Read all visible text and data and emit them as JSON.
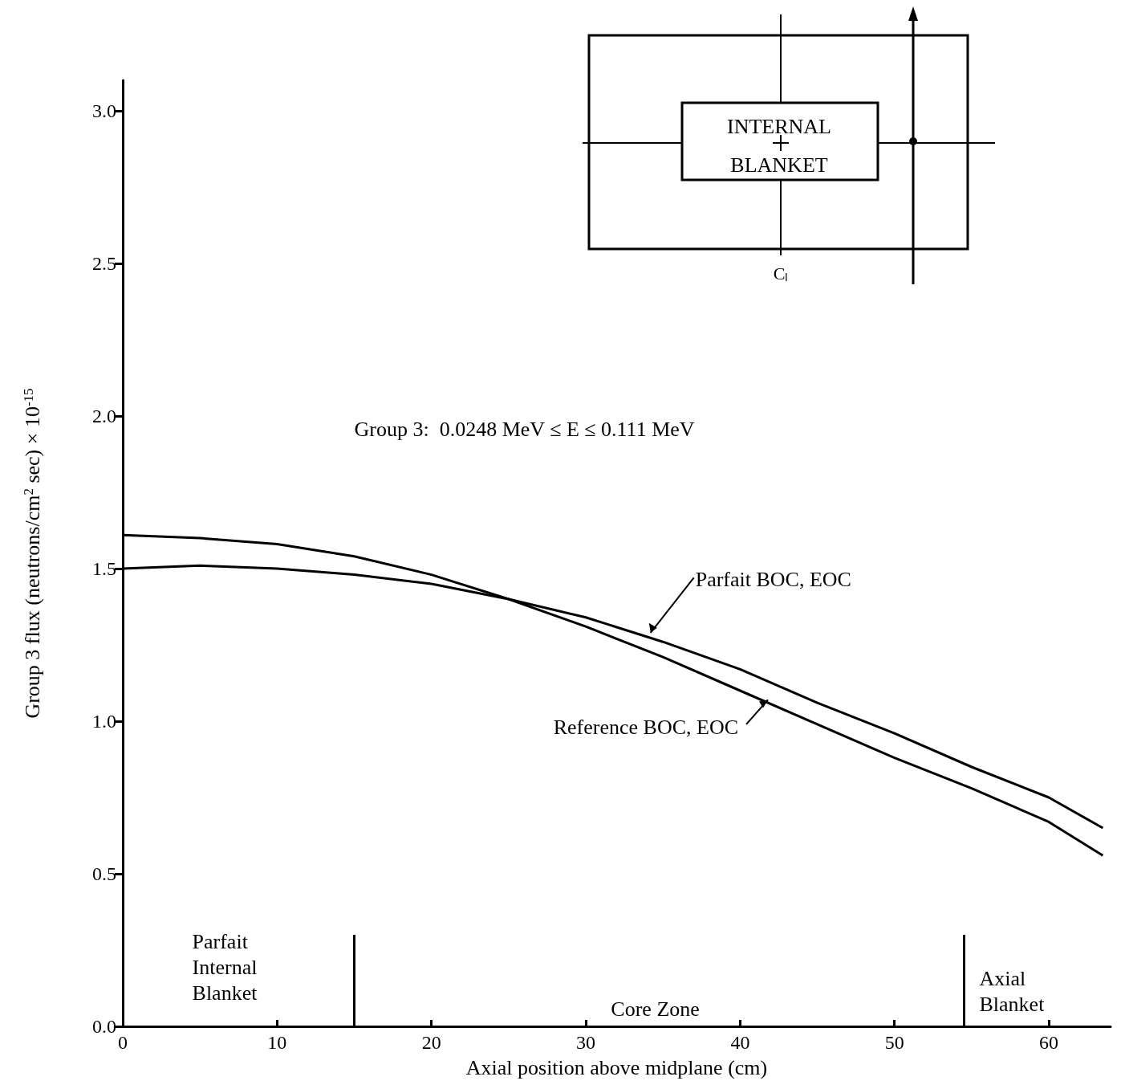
{
  "chart_data": {
    "type": "line",
    "xlabel": "Axial position above midplane (cm)",
    "ylabel": "Group 3 flux (neutrons/cm$^{2}$ sec) × 10$^{-15}$",
    "x": [
      0,
      5,
      10,
      15,
      20,
      25,
      30,
      35,
      40,
      45,
      50,
      55,
      60,
      63.5
    ],
    "series": [
      {
        "name": "Parfait BOC, EOC",
        "color": "#000000",
        "values": [
          1.5,
          1.51,
          1.5,
          1.48,
          1.45,
          1.4,
          1.34,
          1.26,
          1.17,
          1.06,
          0.96,
          0.85,
          0.75,
          0.65
        ]
      },
      {
        "name": "Reference BOC, EOC",
        "color": "#000000",
        "values": [
          1.61,
          1.6,
          1.58,
          1.54,
          1.48,
          1.4,
          1.31,
          1.21,
          1.1,
          0.99,
          0.88,
          0.78,
          0.67,
          0.56
        ]
      }
    ],
    "xlim": [
      0,
      64
    ],
    "xticks": [
      0,
      10,
      20,
      30,
      40,
      50,
      60
    ],
    "ylim": [
      0,
      3.1
    ],
    "yticks": [
      {
        "value": 0,
        "label": "0.0"
      },
      0.5,
      {
        "value": 1,
        "label": "1.0"
      },
      1.5,
      {
        "value": 2,
        "label": "2.0"
      },
      2.5,
      {
        "value": 3,
        "label": "3.0"
      }
    ],
    "ref_lines": [
      {
        "axis": "x",
        "value": 15
      },
      {
        "axis": "x",
        "value": 54.5
      }
    ],
    "annotations": [
      "Group 3:  0.0248 MeV ≤ E ≤ 0.111 MeV",
      "Parfait\nInternal\nBlanket",
      "Core Zone",
      "Axial\nBlanket",
      "INTERNAL\nBLANKET",
      "Cₗ"
    ],
    "grid": false,
    "legend": false,
    "marker": "none",
    "line_style": "solid"
  }
}
